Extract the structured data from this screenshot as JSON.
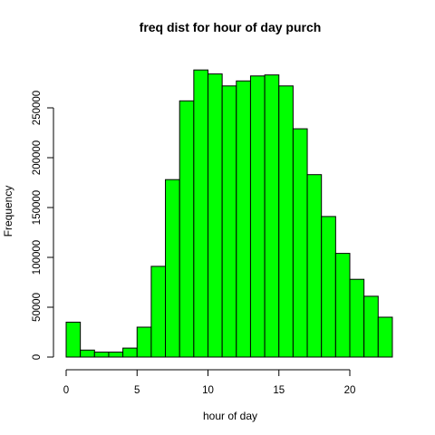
{
  "chart_data": {
    "type": "bar",
    "title": "freq dist for hour of day purch",
    "xlabel": "hour of day",
    "ylabel": "Frequency",
    "bin_edges": [
      0,
      1,
      2,
      3,
      4,
      5,
      6,
      7,
      8,
      9,
      10,
      11,
      12,
      13,
      14,
      15,
      16,
      17,
      18,
      19,
      20,
      21,
      22,
      23
    ],
    "values": [
      35000,
      7000,
      5000,
      5000,
      9000,
      30000,
      91000,
      178000,
      257000,
      288000,
      284000,
      272000,
      277000,
      282000,
      283000,
      272000,
      229000,
      183000,
      141000,
      104000,
      78000,
      61000,
      40000
    ],
    "xlim": [
      0,
      23
    ],
    "ylim": [
      0,
      290000
    ],
    "x_ticks": [
      0,
      5,
      10,
      15,
      20
    ],
    "y_ticks": [
      0,
      50000,
      100000,
      150000,
      200000,
      250000
    ],
    "bar_color": "#00ff00",
    "bar_edge_color": "#000000",
    "grid": false
  }
}
